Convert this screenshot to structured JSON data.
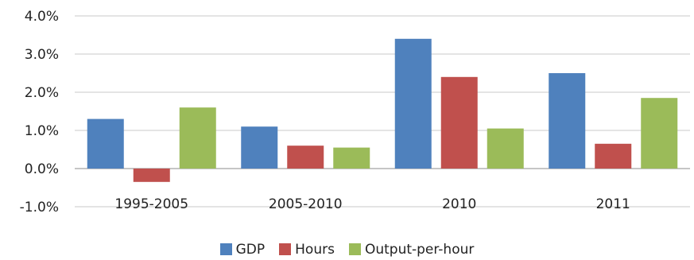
{
  "chart_data": {
    "type": "bar",
    "categories": [
      "1995-2005",
      "2005-2010",
      "2010",
      "2011"
    ],
    "series": [
      {
        "name": "GDP",
        "color": "#4f81bd",
        "values": [
          1.3,
          1.1,
          3.4,
          2.5
        ]
      },
      {
        "name": "Hours",
        "color": "#c0504d",
        "values": [
          -0.35,
          0.6,
          2.4,
          0.65
        ]
      },
      {
        "name": "Output-per-hour",
        "color": "#9bbb59",
        "values": [
          1.6,
          0.55,
          1.05,
          1.85
        ]
      }
    ],
    "y_ticks": [
      "4.0%",
      "3.0%",
      "2.0%",
      "1.0%",
      "0.0%",
      "-1.0%"
    ],
    "y_tick_values": [
      4,
      3,
      2,
      1,
      0,
      -1
    ],
    "ylim": [
      -1,
      4
    ],
    "grid": "horizontal",
    "legend_position": "bottom"
  }
}
